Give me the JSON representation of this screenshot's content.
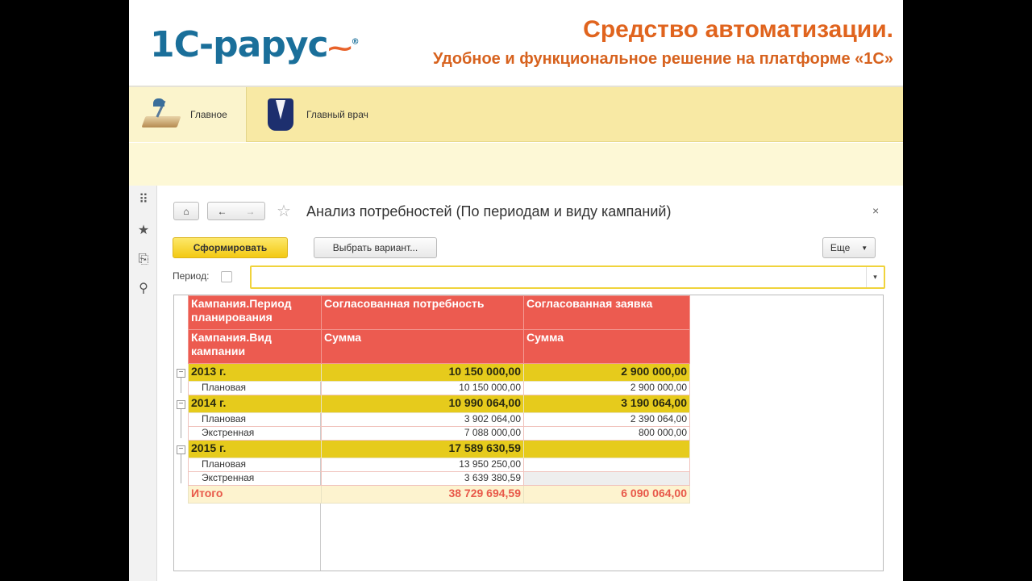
{
  "header": {
    "logo": "1С-рарус",
    "title": "Средство автоматизации.",
    "subtitle": "Удобное и функциональное решение на платформе «1С»"
  },
  "sections": [
    {
      "label": "Главное",
      "icon": "desk-lamp-icon"
    },
    {
      "label": "Главный врач",
      "icon": "doctor-coat-icon"
    }
  ],
  "sidebar": [
    "apps-grid-icon",
    "star-icon",
    "history-icon",
    "search-icon"
  ],
  "form": {
    "title": "Анализ потребностей (По периодам и виду кампаний)",
    "close": "×",
    "generate": "Сформировать",
    "choose_variant": "Выбрать вариант...",
    "more": "Еще",
    "period_label": "Период:",
    "period_value": "",
    "period_checked": false
  },
  "report": {
    "headers": [
      [
        "Кампания.Период планирования",
        "Согласованная потребность",
        "Согласованная заявка"
      ],
      [
        "Кампания.Вид кампании",
        "Сумма",
        "Сумма"
      ]
    ],
    "groups": [
      {
        "label": "2013 г.",
        "need": "10 150 000,00",
        "request": "2 900 000,00",
        "items": [
          {
            "label": "Плановая",
            "need": "10 150 000,00",
            "request": "2 900 000,00"
          }
        ]
      },
      {
        "label": "2014 г.",
        "need": "10 990 064,00",
        "request": "3 190 064,00",
        "items": [
          {
            "label": "Плановая",
            "need": "3 902 064,00",
            "request": "2 390 064,00"
          },
          {
            "label": "Экстренная",
            "need": "7 088 000,00",
            "request": "800 000,00"
          }
        ]
      },
      {
        "label": "2015 г.",
        "need": "17 589 630,59",
        "request": "",
        "items": [
          {
            "label": "Плановая",
            "need": "13 950 250,00",
            "request": ""
          },
          {
            "label": "Экстренная",
            "need": "3 639 380,59",
            "request": ""
          }
        ]
      }
    ],
    "total": {
      "label": "Итого",
      "need": "38 729 694,59",
      "request": "6 090 064,00"
    }
  },
  "colors": {
    "accent_orange": "#e0641e",
    "header_red": "#ec5b50",
    "group_yellow": "#e6cb1c",
    "total_red": "#e8594a"
  }
}
